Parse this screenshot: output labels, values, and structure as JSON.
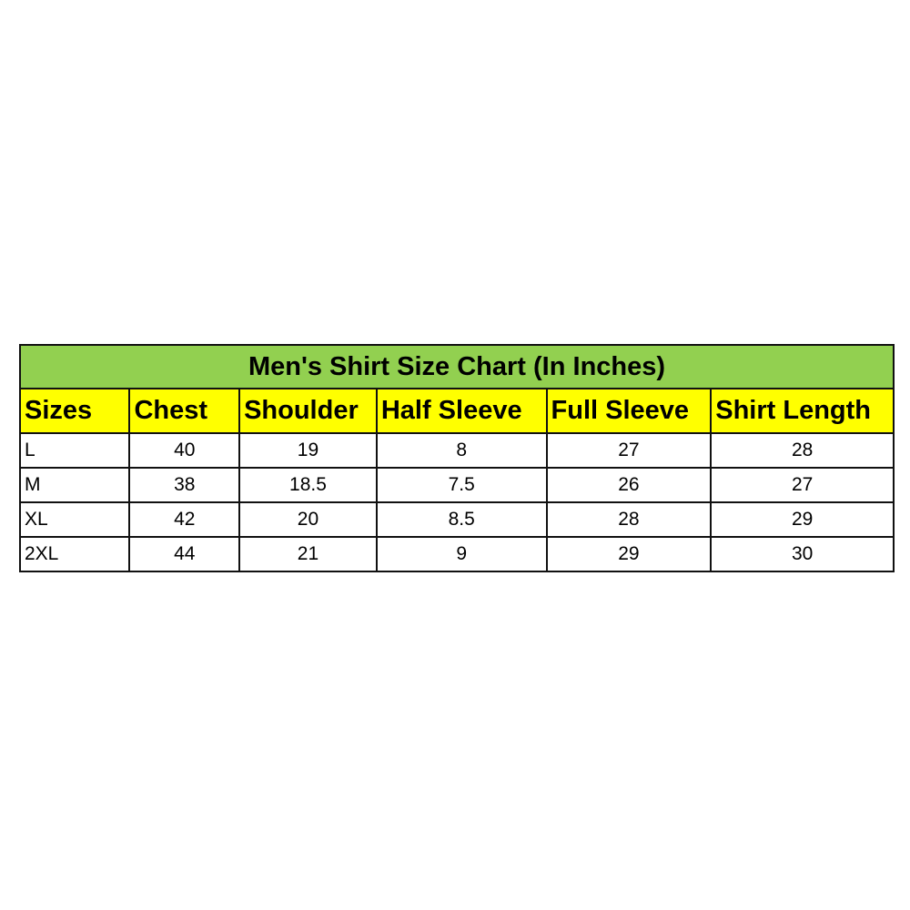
{
  "title": "Men's Shirt Size Chart (In Inches)",
  "colors": {
    "title_bg": "#92d050",
    "header_bg": "#ffff00",
    "border": "#111111"
  },
  "columns": [
    "Sizes",
    "Chest",
    "Shoulder",
    "Half Sleeve",
    "Full Sleeve",
    "Shirt Length"
  ],
  "rows": [
    [
      "L",
      "40",
      "19",
      "8",
      "27",
      "28"
    ],
    [
      "M",
      "38",
      "18.5",
      "7.5",
      "26",
      "27"
    ],
    [
      "XL",
      "42",
      "20",
      "8.5",
      "28",
      "29"
    ],
    [
      "2XL",
      "44",
      "21",
      "9",
      "29",
      "30"
    ]
  ]
}
